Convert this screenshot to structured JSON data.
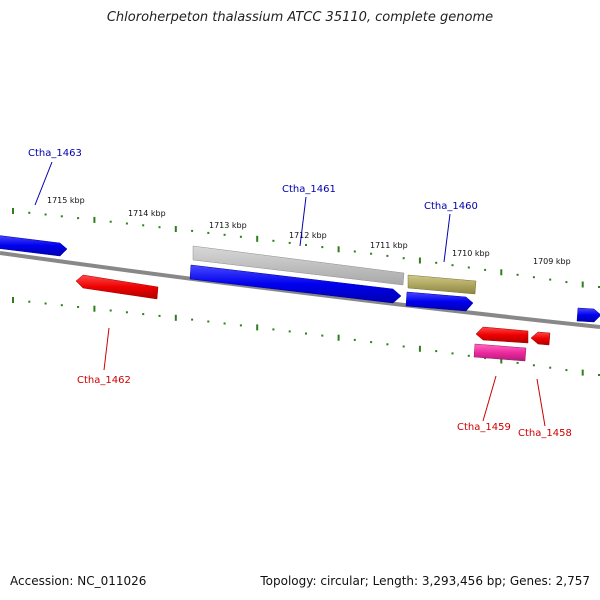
{
  "title": "Chloroherpeton thalassium ATCC 35110, complete genome",
  "footer": {
    "accession": "Accession: NC_011026",
    "summary": "Topology: circular; Length: 3,293,456 bp; Genes: 2,757"
  },
  "colors": {
    "backbone": "#888888",
    "ruler": "#2e7d1e",
    "forward_gene": "#0000ee",
    "reverse_gene": "#ee0000",
    "pseudo_gene": "#c0c0c0",
    "rna_gene": "#b0a860",
    "reverse_alt_gene": "#ee2aa0",
    "forward_label": "#0000aa",
    "reverse_label": "#cc0000"
  },
  "ruler_labels": [
    "1715 kbp",
    "1714 kbp",
    "1713 kbp",
    "1712 kbp",
    "1711 kbp",
    "1710 kbp",
    "1709 kbp"
  ],
  "genes": [
    {
      "label": "Ctha_1463",
      "strand": "forward",
      "kind": "cds"
    },
    {
      "label": "Ctha_1462",
      "strand": "reverse",
      "kind": "cds"
    },
    {
      "label": "Ctha_1461",
      "strand": "forward",
      "kind": "cds"
    },
    {
      "label": "Ctha_1460",
      "strand": "forward",
      "kind": "cds"
    },
    {
      "label": "Ctha_1459",
      "strand": "reverse",
      "kind": "cds"
    },
    {
      "label": "Ctha_1458",
      "strand": "reverse",
      "kind": "cds"
    }
  ]
}
